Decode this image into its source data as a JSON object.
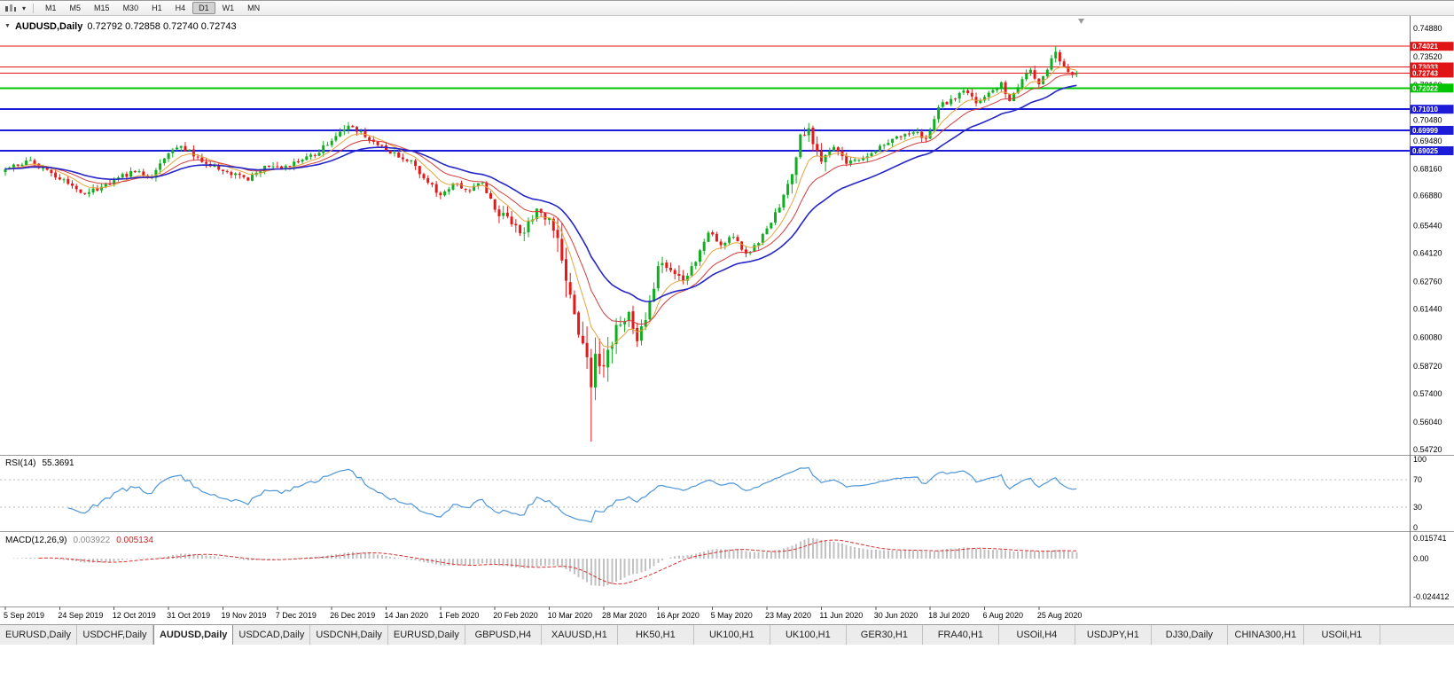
{
  "toolbar": {
    "timeframes": [
      {
        "label": "M1",
        "active": false
      },
      {
        "label": "M5",
        "active": false
      },
      {
        "label": "M15",
        "active": false
      },
      {
        "label": "M30",
        "active": false
      },
      {
        "label": "H1",
        "active": false
      },
      {
        "label": "H4",
        "active": false
      },
      {
        "label": "D1",
        "active": true
      },
      {
        "label": "W1",
        "active": false
      },
      {
        "label": "MN",
        "active": false
      }
    ]
  },
  "chart": {
    "title_symbol": "AUDUSD,Daily",
    "title_ohlc": "0.72792 0.72858 0.72740 0.72743"
  },
  "chart_data": {
    "type": "candlestick",
    "symbol": "AUDUSD",
    "period": "Daily",
    "last_quote": {
      "open": 0.72792,
      "high": 0.72858,
      "low": 0.7274,
      "close": 0.72743
    },
    "bars": 257,
    "x_label_interval": 13,
    "x_labels": [
      "5 Sep 2019",
      "24 Sep 2019",
      "12 Oct 2019",
      "31 Oct 2019",
      "19 Nov 2019",
      "7 Dec 2019",
      "26 Dec 2019",
      "14 Jan 2020",
      "1 Feb 2020",
      "20 Feb 2020",
      "10 Mar 2020",
      "28 Mar 2020",
      "16 Apr 2020",
      "5 May 2020",
      "23 May 2020",
      "11 Jun 2020",
      "30 Jun 2020",
      "18 Jul 2020",
      "6 Aug 2020",
      "25 Aug 2020"
    ],
    "price_axis": {
      "max": 0.7488,
      "min": 0.5472,
      "labels": [
        "0.74880",
        "0.73520",
        "0.72160",
        "0.70480",
        "0.69480",
        "0.68160",
        "0.66880",
        "0.65440",
        "0.64120",
        "0.62760",
        "0.61440",
        "0.60080",
        "0.58720",
        "0.57400",
        "0.56040",
        "0.54720"
      ]
    },
    "horizontal_lines": [
      {
        "price": 0.74021,
        "label": "0.74021",
        "color": "#e01414",
        "thickness": 1
      },
      {
        "price": 0.73033,
        "label": "0.73033",
        "color": "#e01414",
        "thickness": 1
      },
      {
        "price": 0.72743,
        "label": "0.72743",
        "color": "#e01414",
        "thickness": 1
      },
      {
        "price": 0.72022,
        "label": "0.72022",
        "color": "#00c400",
        "thickness": 2
      },
      {
        "price": 0.7101,
        "label": "0.71010",
        "color": "#1c1cd8",
        "thickness": 2
      },
      {
        "price": 0.69999,
        "label": "0.69999",
        "color": "#1c1cd8",
        "thickness": 2
      },
      {
        "price": 0.69025,
        "label": "0.69025",
        "color": "#1c1cd8",
        "thickness": 2
      }
    ],
    "moving_averages": [
      {
        "name": "fast-ma",
        "period": 8,
        "color": "#e8a33d",
        "width": 1
      },
      {
        "name": "mid-ma",
        "period": 16,
        "color": "#d43c3c",
        "width": 1
      },
      {
        "name": "slow-ma",
        "period": 30,
        "color": "#2626c8",
        "width": 1.6
      }
    ],
    "candles": {
      "up_color": "#0faf20",
      "down_color": "#e51919",
      "seed": 13,
      "volatility": {
        "default": 0.0028,
        "ranges": [
          [
            117,
            131,
            0.005
          ],
          [
            132,
            146,
            0.011
          ],
          [
            147,
            162,
            0.006
          ],
          [
            188,
            196,
            0.006
          ]
        ]
      },
      "anchors": [
        [
          0,
          0.6815
        ],
        [
          5,
          0.6855
        ],
        [
          9,
          0.682
        ],
        [
          13,
          0.6765
        ],
        [
          19,
          0.6695
        ],
        [
          23,
          0.673
        ],
        [
          26,
          0.6765
        ],
        [
          31,
          0.68
        ],
        [
          35,
          0.6775
        ],
        [
          39,
          0.689
        ],
        [
          42,
          0.6925
        ],
        [
          46,
          0.687
        ],
        [
          52,
          0.6805
        ],
        [
          58,
          0.676
        ],
        [
          62,
          0.683
        ],
        [
          66,
          0.6815
        ],
        [
          70,
          0.685
        ],
        [
          74,
          0.688
        ],
        [
          78,
          0.695
        ],
        [
          82,
          0.7022
        ],
        [
          85,
          0.6995
        ],
        [
          88,
          0.6945
        ],
        [
          91,
          0.6905
        ],
        [
          94,
          0.687
        ],
        [
          97,
          0.6855
        ],
        [
          100,
          0.677
        ],
        [
          104,
          0.669
        ],
        [
          107,
          0.6745
        ],
        [
          110,
          0.6715
        ],
        [
          114,
          0.675
        ],
        [
          117,
          0.662
        ],
        [
          121,
          0.655
        ],
        [
          124,
          0.651
        ],
        [
          127,
          0.6625
        ],
        [
          130,
          0.658
        ],
        [
          132,
          0.6485
        ],
        [
          134,
          0.628
        ],
        [
          136,
          0.612
        ],
        [
          138,
          0.598
        ],
        [
          140,
          0.577
        ],
        [
          141,
          0.593
        ],
        [
          143,
          0.587
        ],
        [
          145,
          0.597
        ],
        [
          147,
          0.607
        ],
        [
          149,
          0.613
        ],
        [
          151,
          0.599
        ],
        [
          154,
          0.618
        ],
        [
          156,
          0.635
        ],
        [
          159,
          0.633
        ],
        [
          162,
          0.628
        ],
        [
          165,
          0.637
        ],
        [
          168,
          0.651
        ],
        [
          171,
          0.645
        ],
        [
          174,
          0.649
        ],
        [
          177,
          0.641
        ],
        [
          180,
          0.646
        ],
        [
          182,
          0.653
        ],
        [
          185,
          0.663
        ],
        [
          188,
          0.679
        ],
        [
          190,
          0.698
        ],
        [
          192,
          0.701
        ],
        [
          195,
          0.685
        ],
        [
          198,
          0.692
        ],
        [
          201,
          0.684
        ],
        [
          204,
          0.686
        ],
        [
          208,
          0.69
        ],
        [
          211,
          0.694
        ],
        [
          214,
          0.697
        ],
        [
          217,
          0.699
        ],
        [
          220,
          0.696
        ],
        [
          223,
          0.711
        ],
        [
          226,
          0.715
        ],
        [
          229,
          0.719
        ],
        [
          232,
          0.713
        ],
        [
          235,
          0.718
        ],
        [
          238,
          0.723
        ],
        [
          240,
          0.714
        ],
        [
          243,
          0.7245
        ],
        [
          245,
          0.729
        ],
        [
          247,
          0.722
        ],
        [
          249,
          0.729
        ],
        [
          251,
          0.7376
        ],
        [
          252,
          0.733
        ],
        [
          254,
          0.728
        ],
        [
          256,
          0.72743
        ]
      ],
      "spikes": [
        {
          "index": 140,
          "low": 0.551
        },
        {
          "index": 251,
          "high": 0.7402
        }
      ]
    },
    "rsi": {
      "label": "RSI(14)",
      "value": "55.3691",
      "period": 14,
      "levels": [
        70,
        30
      ],
      "axis_labels": [
        "100",
        "70",
        "30",
        "0"
      ],
      "color": "#4e96d8"
    },
    "macd": {
      "label": "MACD(12,26,9)",
      "value_main": "0.003922",
      "value_signal": "0.005134",
      "fast": 12,
      "slow": 26,
      "signal": 9,
      "axis_labels": [
        "0.015741",
        "0.00",
        "-0.024412"
      ],
      "hist_color": "#c2c2c2",
      "signal_color": "#d83030"
    }
  },
  "tabs": [
    {
      "label": "EURUSD,Daily",
      "active": false
    },
    {
      "label": "USDCHF,Daily",
      "active": false
    },
    {
      "label": "AUDUSD,Daily",
      "active": true
    },
    {
      "label": "USDCAD,Daily",
      "active": false
    },
    {
      "label": "USDCNH,Daily",
      "active": false
    },
    {
      "label": "EURUSD,Daily",
      "active": false
    },
    {
      "label": "GBPUSD,H4",
      "active": false
    },
    {
      "label": "XAUUSD,H1",
      "active": false
    },
    {
      "label": "HK50,H1",
      "active": false
    },
    {
      "label": "UK100,H1",
      "active": false
    },
    {
      "label": "UK100,H1",
      "active": false
    },
    {
      "label": "GER30,H1",
      "active": false
    },
    {
      "label": "FRA40,H1",
      "active": false
    },
    {
      "label": "USOil,H4",
      "active": false
    },
    {
      "label": "USDJPY,H1",
      "active": false
    },
    {
      "label": "DJ30,Daily",
      "active": false
    },
    {
      "label": "CHINA300,H1",
      "active": false
    },
    {
      "label": "USOil,H1",
      "active": false
    }
  ]
}
